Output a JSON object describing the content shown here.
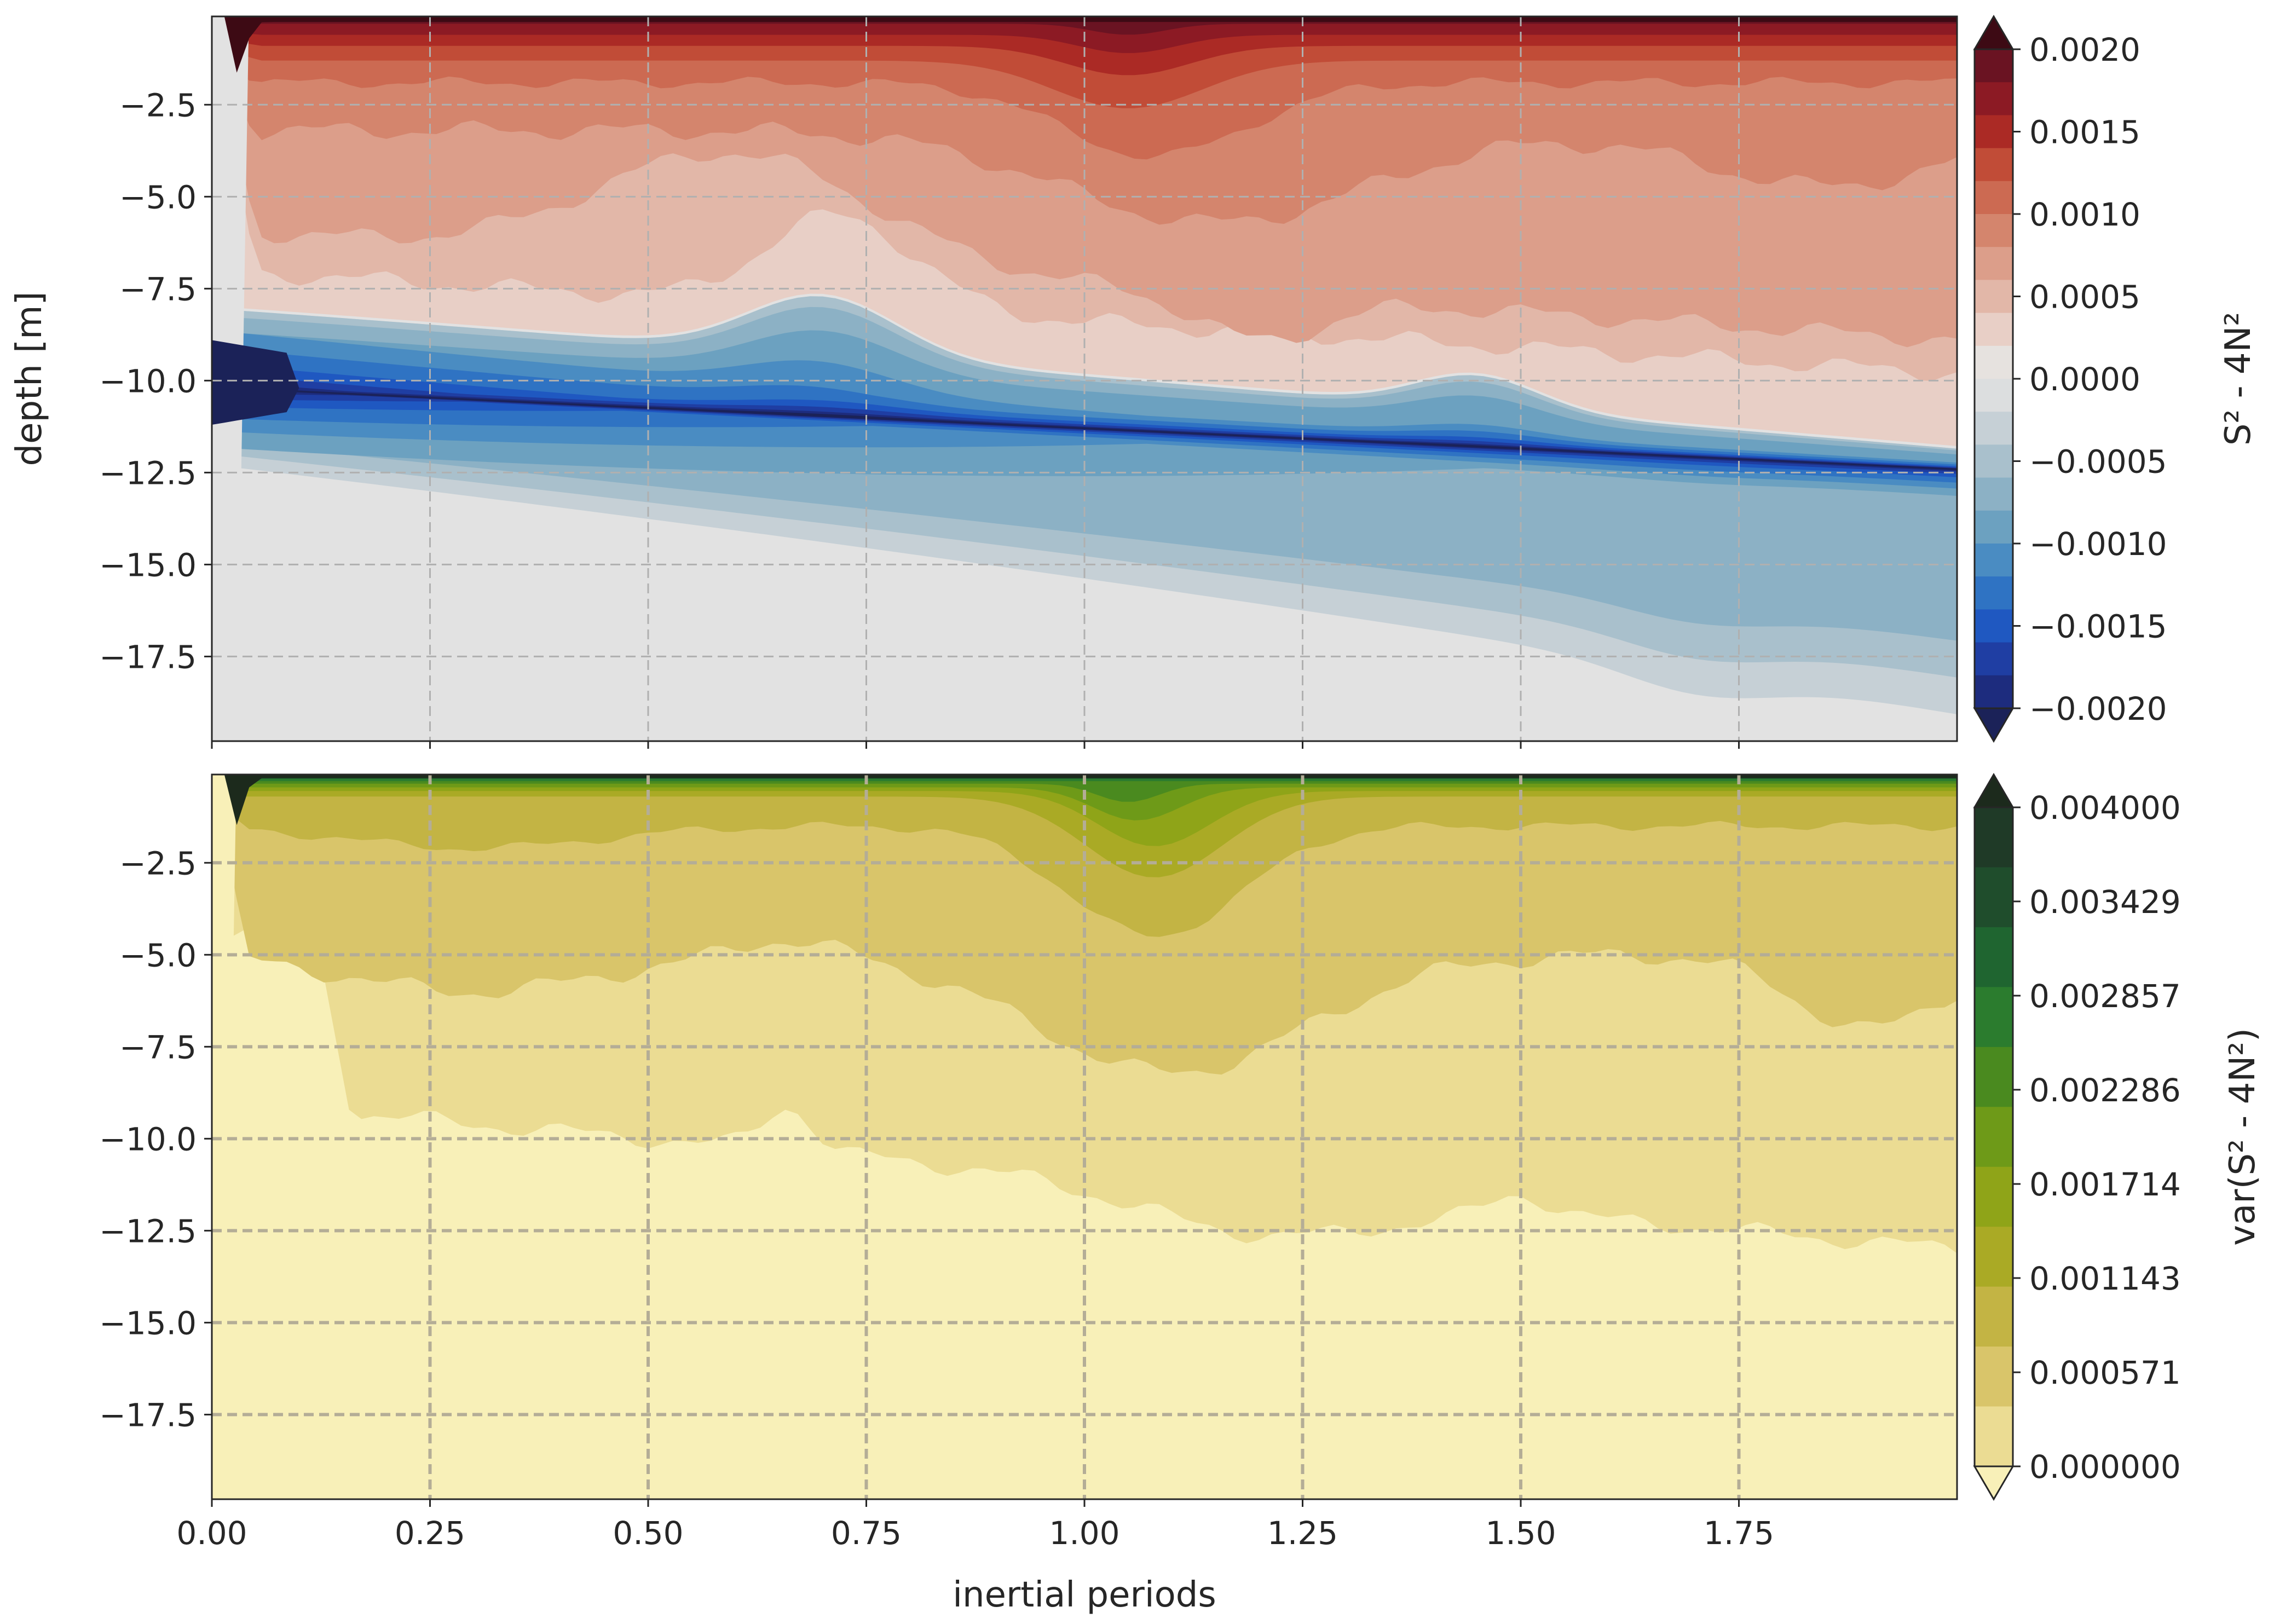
{
  "chart_data": [
    {
      "type": "heatmap",
      "subtype": "filled-contour",
      "title": "",
      "xlabel": "",
      "ylabel": "depth [m]",
      "xlim": [
        0.0,
        2.0
      ],
      "ylim": [
        -19.8,
        -0.1
      ],
      "x_ticks": [
        0.0,
        0.25,
        0.5,
        0.75,
        1.0,
        1.25,
        1.5,
        1.75
      ],
      "x_tick_labels_visible": false,
      "y_ticks": [
        -2.5,
        -5.0,
        -7.5,
        -10.0,
        -12.5,
        -15.0,
        -17.5
      ],
      "y_tick_labels": [
        "−2.5",
        "−5.0",
        "−7.5",
        "−10.0",
        "−12.5",
        "−15.0",
        "−17.5"
      ],
      "grid": true,
      "grid_style": "dashed",
      "background_color": "#e2e2e2",
      "colorbar": {
        "label": "S² - 4N²",
        "extend": "both",
        "tick_values": [
          0.002,
          0.0015,
          0.001,
          0.0005,
          0.0,
          -0.0005,
          -0.001,
          -0.0015,
          -0.002
        ],
        "tick_labels": [
          "0.0020",
          "0.0015",
          "0.0010",
          "0.0005",
          "0.0000",
          "−0.0005",
          "−0.0010",
          "−0.0015",
          "−0.0020"
        ],
        "levels_top_to_bottom": [
          "#3d0a14",
          "#6a1322",
          "#8c1a24",
          "#ab2a25",
          "#c14c37",
          "#cc6a52",
          "#d4856d",
          "#dc9e8a",
          "#e2b7a8",
          "#e8cfc6",
          "#e6e2df",
          "#dcdedf",
          "#c6d0d6",
          "#a9c0cc",
          "#8cb1c5",
          "#6ca1c0",
          "#4a8cc2",
          "#2f73c3",
          "#1f58c1",
          "#1f3ea3",
          "#1d2c7e",
          "#1b2258"
        ]
      },
      "regions": [
        {
          "name": "surface high-shear band",
          "depth_range": [
            -1.2,
            -0.1
          ],
          "value_range": [
            0.0015,
            0.002
          ]
        },
        {
          "name": "upper positive layer",
          "x_range": [
            0.03,
            2.0
          ],
          "depth_top": -0.1,
          "depth_bottom_at_start": -8.0,
          "depth_bottom_at_end": -11.5,
          "value_range": [
            0.0003,
            0.0012
          ]
        },
        {
          "name": "negative wedge core",
          "x": 0.0,
          "depth": -10.0,
          "value": -0.002
        },
        {
          "name": "negative wedge",
          "depth_top_at_start": -8.5,
          "depth_top_at_end": -11.8,
          "depth_bottom_at_start": -12.0,
          "depth_bottom_at_end": -17.8,
          "value_range": [
            -0.0012,
            -0.0002
          ]
        }
      ]
    },
    {
      "type": "heatmap",
      "subtype": "filled-contour",
      "title": "",
      "xlabel": "inertial periods",
      "ylabel": "",
      "xlim": [
        0.0,
        2.0
      ],
      "ylim": [
        -19.8,
        -0.1
      ],
      "x_ticks": [
        0.0,
        0.25,
        0.5,
        0.75,
        1.0,
        1.25,
        1.5,
        1.75
      ],
      "x_tick_labels": [
        "0.00",
        "0.25",
        "0.50",
        "0.75",
        "1.00",
        "1.25",
        "1.50",
        "1.75"
      ],
      "y_ticks": [
        -2.5,
        -5.0,
        -7.5,
        -10.0,
        -12.5,
        -15.0,
        -17.5
      ],
      "y_tick_labels": [
        "−2.5",
        "−5.0",
        "−7.5",
        "−10.0",
        "−12.5",
        "−15.0",
        "−17.5"
      ],
      "grid": true,
      "grid_style": "dashed",
      "background_color": "#f8f0b8",
      "colorbar": {
        "label": "var(S² - 4N²)",
        "extend": "both",
        "tick_values": [
          0.004,
          0.003429,
          0.002857,
          0.002286,
          0.001714,
          0.001143,
          0.000571,
          0.0
        ],
        "tick_labels": [
          "0.004000",
          "0.003429",
          "0.002857",
          "0.002286",
          "0.001714",
          "0.001143",
          "0.000571",
          "0.000000"
        ],
        "levels_top_to_bottom": [
          "#1c2a1c",
          "#1f3a27",
          "#1f4d2c",
          "#1f6530",
          "#2b7c2e",
          "#4a8a1f",
          "#6e9a18",
          "#8fa418",
          "#aaaa25",
          "#c3b444",
          "#d9c56a",
          "#ebdc93",
          "#f8f0b8"
        ]
      },
      "regions": [
        {
          "name": "surface high-variance band",
          "depth_range": [
            -1.0,
            -0.1
          ],
          "value_range": [
            0.0028,
            0.004
          ]
        },
        {
          "name": "upper variance layer",
          "depth_top": -0.1,
          "depth_bottom_at_start": -7.0,
          "depth_bottom_at_end": -11.8,
          "value_range": [
            0.0003,
            0.0012
          ]
        },
        {
          "name": "variance peak",
          "x": 1.1,
          "depth": -3.0,
          "value": 0.0018
        },
        {
          "name": "quiescent interior",
          "depth_range": [
            -19.8,
            -8.0
          ],
          "value": 0.0
        }
      ]
    }
  ]
}
